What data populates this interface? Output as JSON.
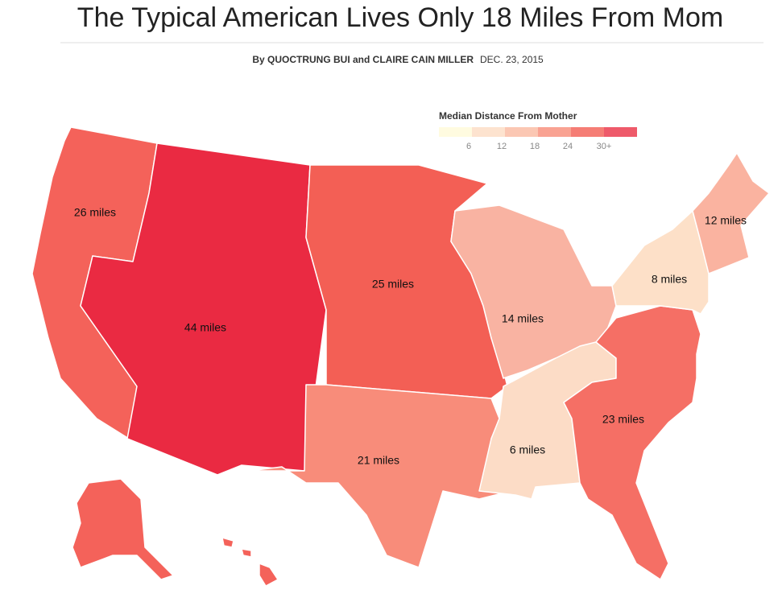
{
  "header": {
    "title": "The Typical American Lives Only 18 Miles From Mom",
    "byline": "By QUOCTRUNG BUI and CLAIRE CAIN MILLER",
    "date": "DEC. 23, 2015"
  },
  "legend": {
    "title": "Median Distance From Mother",
    "colors": [
      "#fffbe0",
      "#fde3cf",
      "#fbc7b3",
      "#f9a292",
      "#f57d75",
      "#ee5a6a"
    ],
    "ticks": [
      6,
      12,
      18,
      24,
      {
        "value": 30,
        "label": "30+"
      }
    ]
  },
  "regions": [
    {
      "label": "26 miles",
      "color": "#f4625a"
    },
    {
      "label": "44 miles",
      "color": "#ea2a42"
    },
    {
      "label": "25 miles",
      "color": "#f35f55"
    },
    {
      "label": "14 miles",
      "color": "#f9b3a2"
    },
    {
      "label": "21 miles",
      "color": "#f88c7a"
    },
    {
      "label": "6 miles",
      "color": "#fcdcc6"
    },
    {
      "label": "23 miles",
      "color": "#f56f65"
    },
    {
      "label": "8 miles",
      "color": "#fde0c8"
    },
    {
      "label": "12 miles",
      "color": "#fab3a0"
    }
  ]
}
